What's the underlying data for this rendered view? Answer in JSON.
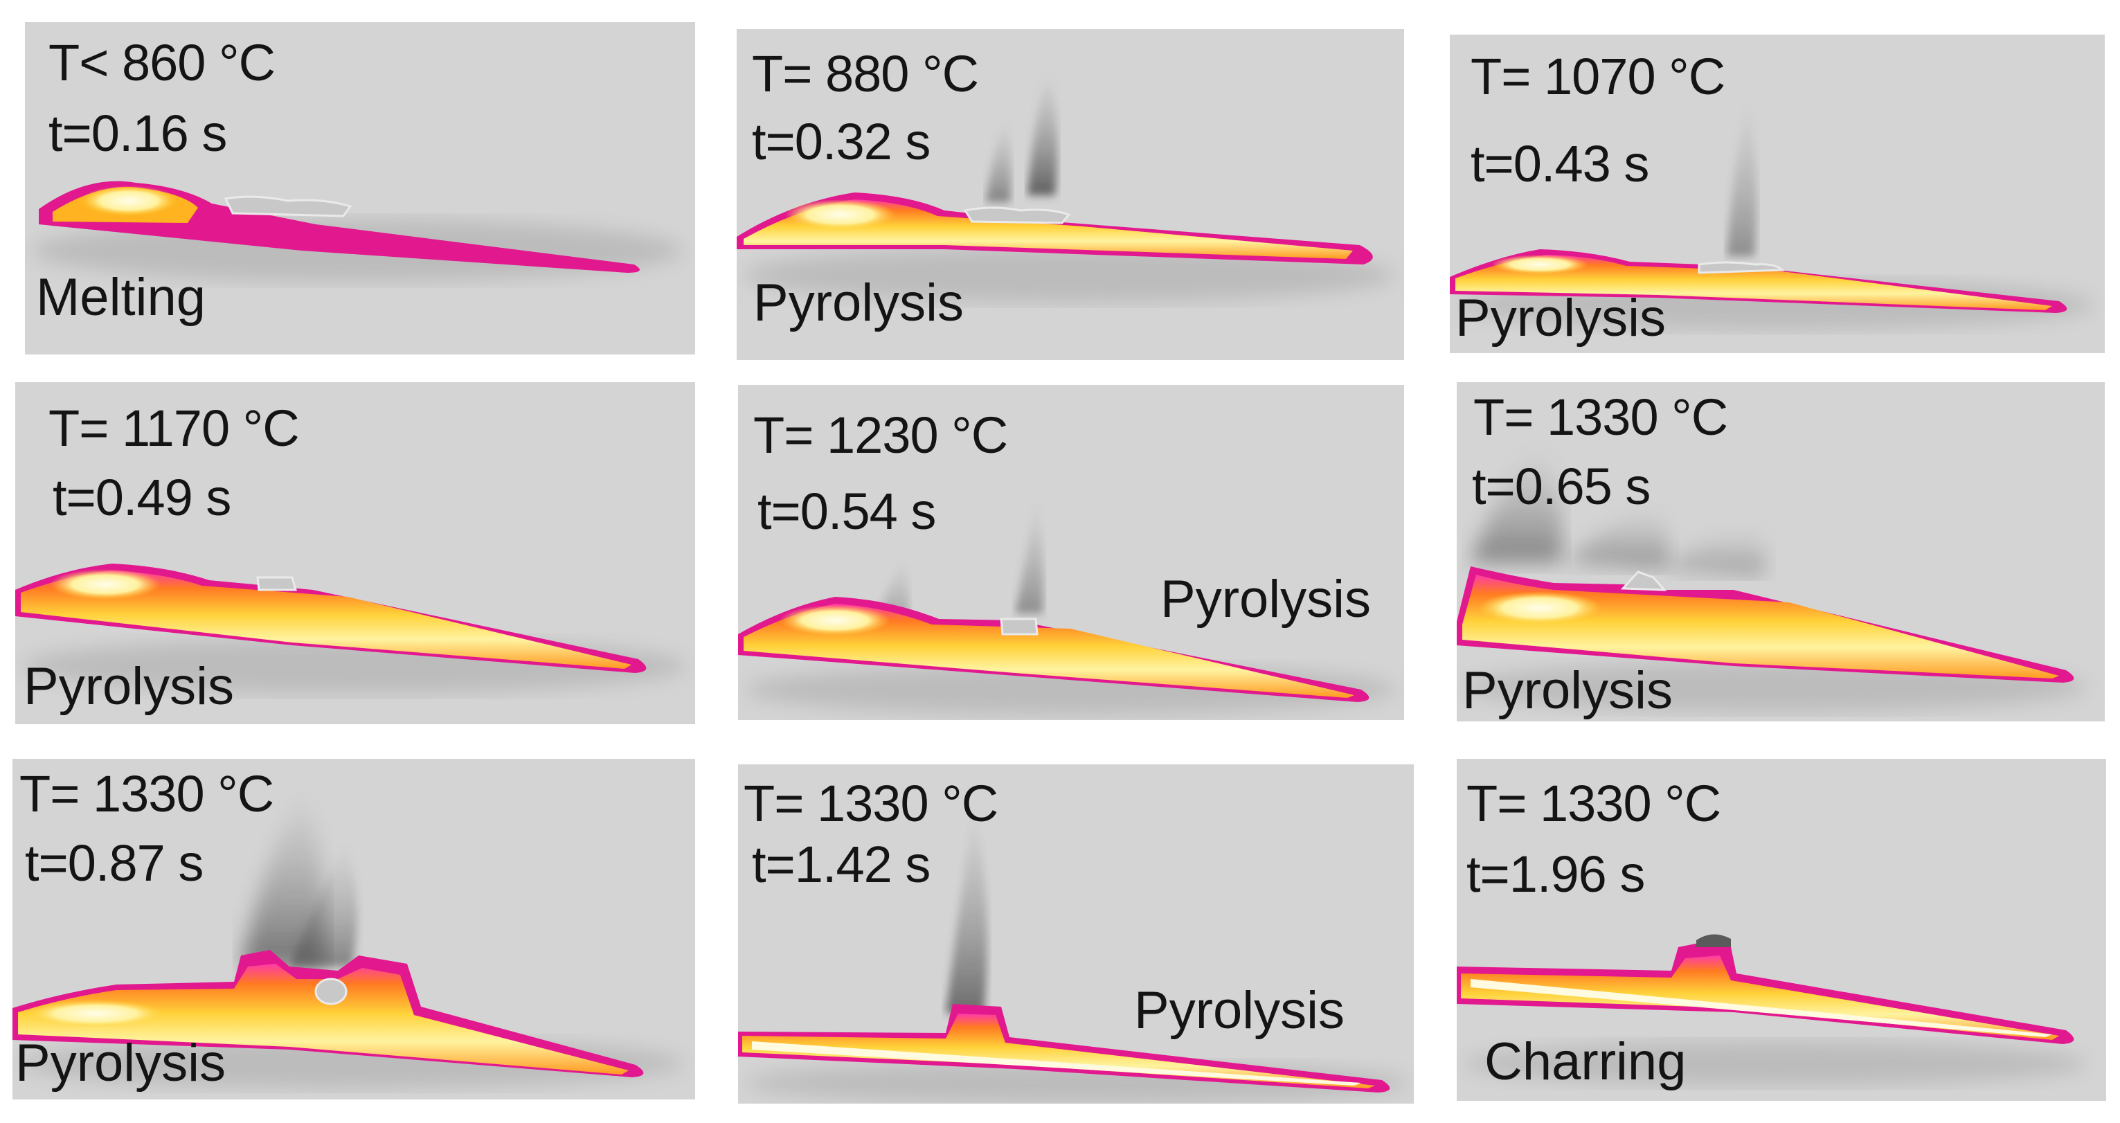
{
  "figure": {
    "panels": [
      {
        "temperature": "T< 860 °C",
        "time": "t=0.16 s",
        "stage": "Melting"
      },
      {
        "temperature": "T= 880 °C",
        "time": "t=0.32 s",
        "stage": "Pyrolysis"
      },
      {
        "temperature": "T= 1070 °C",
        "time": "t=0.43 s",
        "stage": "Pyrolysis"
      },
      {
        "temperature": "T= 1170 °C",
        "time": "t=0.49 s",
        "stage": "Pyrolysis"
      },
      {
        "temperature": "T= 1230 °C",
        "time": "t=0.54 s",
        "stage": "Pyrolysis"
      },
      {
        "temperature": "T= 1330 °C",
        "time": "t=0.65 s",
        "stage": "Pyrolysis"
      },
      {
        "temperature": "T= 1330 °C",
        "time": "t=0.87 s",
        "stage": "Pyrolysis"
      },
      {
        "temperature": "T= 1330 °C",
        "time": "t=1.42 s",
        "stage": "Pyrolysis"
      },
      {
        "temperature": "T= 1330 °C",
        "time": "t=1.96 s",
        "stage": "Charring"
      }
    ],
    "colors": {
      "background": "#d4d4d4",
      "hot_core": "#fff7c0",
      "warm": "#ffd23a",
      "mid": "#ff8a1a",
      "edge": "#e2188e",
      "smoke": "#6a6a6a"
    }
  }
}
